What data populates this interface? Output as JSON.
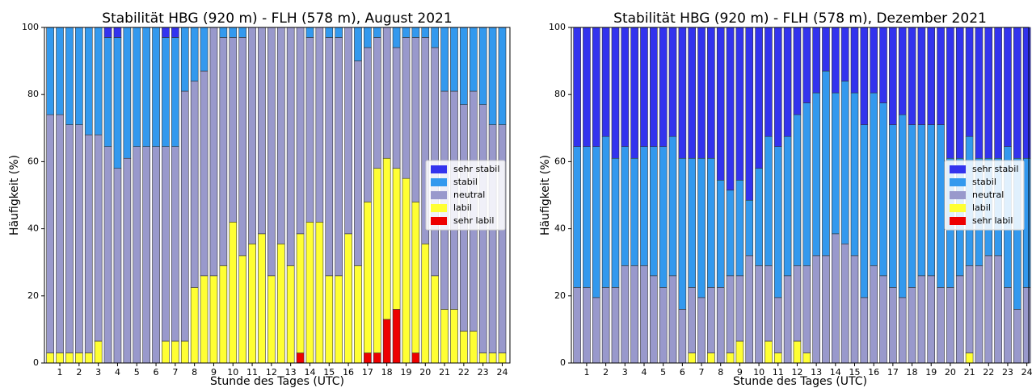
{
  "chart_data": [
    {
      "type": "bar",
      "stacked": true,
      "title": "Stabilität HBG (920 m) - FLH (578 m), August 2021",
      "xlabel": "Stunde des Tages (UTC)",
      "ylabel": "Häufigkeit (%)",
      "legend": "center right",
      "x": [
        0.5,
        1,
        1.5,
        2,
        2.5,
        3,
        3.5,
        4,
        4.5,
        5,
        5.5,
        6,
        6.5,
        7,
        7.5,
        8,
        8.5,
        9,
        9.5,
        10,
        10.5,
        11,
        11.5,
        12,
        12.5,
        13,
        13.5,
        14,
        14.5,
        15,
        15.5,
        16,
        16.5,
        17,
        17.5,
        18,
        18.5,
        19,
        19.5,
        20,
        20.5,
        21,
        21.5,
        22,
        22.5,
        23,
        23.5,
        24
      ],
      "xlim": [
        0.2,
        24.4
      ],
      "ylim": [
        0,
        100
      ],
      "xticks": [
        1,
        2,
        3,
        4,
        5,
        6,
        7,
        8,
        9,
        10,
        11,
        12,
        13,
        14,
        15,
        16,
        17,
        18,
        19,
        20,
        21,
        22,
        23,
        24
      ],
      "yticks": [
        0,
        20,
        40,
        60,
        80,
        100
      ],
      "series": [
        {
          "name": "sehr labil",
          "color": "#ee0000",
          "values": [
            0,
            0,
            0,
            0,
            0,
            0,
            0,
            0,
            0,
            0,
            0,
            0,
            0,
            0,
            0,
            0,
            0,
            0,
            0,
            0,
            0,
            0,
            0,
            0,
            0,
            0,
            3,
            0,
            0,
            0,
            0,
            0,
            0,
            3,
            3,
            13,
            16,
            0,
            3,
            0,
            0,
            0,
            0,
            0,
            0,
            0,
            0,
            0
          ]
        },
        {
          "name": "labil",
          "color": "#ffff33",
          "values": [
            3,
            3,
            3,
            3,
            3,
            6.5,
            0,
            0,
            0,
            0,
            0,
            0,
            6.5,
            6.5,
            6.5,
            22.5,
            26,
            26,
            29,
            42,
            32,
            35.5,
            38.5,
            26,
            35.5,
            29,
            35.5,
            42,
            42,
            26,
            26,
            38.5,
            29,
            45,
            55,
            48,
            42,
            55,
            45,
            35.5,
            26,
            16,
            16,
            9.5,
            9.5,
            3,
            3,
            3
          ]
        },
        {
          "name": "neutral",
          "color": "#9999cc",
          "values": [
            71,
            71,
            68,
            68,
            65,
            61.5,
            64.5,
            58,
            61,
            64.5,
            64.5,
            64.5,
            58,
            58,
            74.5,
            61.5,
            61,
            74,
            68,
            55,
            65,
            64.5,
            61.5,
            74,
            64.5,
            71,
            61.5,
            55,
            58,
            71,
            71,
            61.5,
            61,
            46,
            39,
            39,
            36,
            42,
            49,
            61.5,
            68,
            65,
            65,
            67.5,
            71.5,
            74,
            68,
            68
          ]
        },
        {
          "name": "stabil",
          "color": "#3399ee",
          "values": [
            26,
            26,
            29,
            29,
            32,
            32,
            32.5,
            39,
            39,
            35.5,
            35.5,
            35.5,
            32.5,
            32.5,
            19,
            16,
            13,
            0,
            3,
            3,
            3,
            0,
            0,
            0,
            0,
            0,
            0,
            3,
            0,
            3,
            3,
            0,
            10,
            6,
            3,
            0,
            6,
            3,
            3,
            3,
            6,
            19,
            19,
            23,
            19,
            23,
            29,
            29
          ]
        },
        {
          "name": "sehr stabil",
          "color": "#3333ee",
          "values": [
            0,
            0,
            0,
            0,
            0,
            0,
            3,
            3,
            0,
            0,
            0,
            0,
            3,
            3,
            0,
            0,
            0,
            0,
            0,
            0,
            0,
            0,
            0,
            0,
            0,
            0,
            0,
            0,
            0,
            0,
            0,
            0,
            0,
            0,
            0,
            0,
            0,
            0,
            0,
            0,
            0,
            0,
            0,
            0,
            0,
            0,
            0,
            0
          ]
        }
      ]
    },
    {
      "type": "bar",
      "stacked": true,
      "title": "Stabilität HBG (920 m) - FLH (578 m), Dezember 2021",
      "xlabel": "Stunde des Tages (UTC)",
      "ylabel": "Häufigkeit (%)",
      "legend": "center right",
      "x": [
        0.5,
        1,
        1.5,
        2,
        2.5,
        3,
        3.5,
        4,
        4.5,
        5,
        5.5,
        6,
        6.5,
        7,
        7.5,
        8,
        8.5,
        9,
        9.5,
        10,
        10.5,
        11,
        11.5,
        12,
        12.5,
        13,
        13.5,
        14,
        14.5,
        15,
        15.5,
        16,
        16.5,
        17,
        17.5,
        18,
        18.5,
        19,
        19.5,
        20,
        20.5,
        21,
        21.5,
        22,
        22.5,
        23,
        23.5,
        24
      ],
      "xlim": [
        0.2,
        24.1
      ],
      "ylim": [
        0,
        100
      ],
      "xticks": [
        1,
        2,
        3,
        4,
        5,
        6,
        7,
        8,
        9,
        10,
        11,
        12,
        13,
        14,
        15,
        16,
        17,
        18,
        19,
        20,
        21,
        22,
        23,
        24
      ],
      "yticks": [
        0,
        20,
        40,
        60,
        80,
        100
      ],
      "series": [
        {
          "name": "sehr labil",
          "color": "#ee0000",
          "values": [
            0,
            0,
            0,
            0,
            0,
            0,
            0,
            0,
            0,
            0,
            0,
            0,
            0,
            0,
            0,
            0,
            0,
            0,
            0,
            0,
            0,
            0,
            0,
            0,
            0,
            0,
            0,
            0,
            0,
            0,
            0,
            0,
            0,
            0,
            0,
            0,
            0,
            0,
            0,
            0,
            0,
            0,
            0,
            0,
            0,
            0,
            0,
            0
          ]
        },
        {
          "name": "labil",
          "color": "#ffff33",
          "values": [
            0,
            0,
            0,
            0,
            0,
            0,
            0,
            0,
            0,
            0,
            0,
            0,
            3,
            0,
            3,
            0,
            3,
            6.5,
            0,
            0,
            6.5,
            3,
            0,
            6.5,
            3,
            0,
            0,
            0,
            0,
            0,
            0,
            0,
            0,
            0,
            0,
            0,
            0,
            0,
            0,
            0,
            0,
            3,
            0,
            0,
            0,
            0,
            0,
            0
          ]
        },
        {
          "name": "neutral",
          "color": "#9999cc",
          "values": [
            22.5,
            22.5,
            19.5,
            22.5,
            22.5,
            29,
            29,
            29,
            26,
            22.5,
            26,
            16,
            19.5,
            19.5,
            19.5,
            22.5,
            23,
            19.5,
            32,
            29,
            22.5,
            16.5,
            26,
            22.5,
            26,
            32,
            32,
            38.5,
            35.5,
            32,
            19.5,
            29,
            26,
            22.5,
            19.5,
            22.5,
            26,
            26,
            22.5,
            22.5,
            26,
            26,
            29,
            32,
            32,
            22.5,
            16,
            22.5
          ]
        },
        {
          "name": "stabil",
          "color": "#3399ee",
          "values": [
            42,
            42,
            45,
            45,
            38.5,
            35.5,
            32,
            35.5,
            38.5,
            42,
            41.5,
            45,
            38.5,
            41.5,
            38.5,
            32,
            25.5,
            28.5,
            16.5,
            29,
            38.5,
            45,
            41.5,
            45,
            48.5,
            48.5,
            55,
            42,
            48.5,
            48.5,
            51.5,
            51.5,
            51.5,
            48.5,
            54.5,
            48.5,
            45,
            45,
            48.5,
            38.5,
            35,
            38.5,
            32,
            29,
            29,
            42,
            45,
            38.5
          ]
        },
        {
          "name": "sehr stabil",
          "color": "#3333ee",
          "values": [
            35.5,
            35.5,
            35.5,
            32.5,
            39,
            35.5,
            39,
            35.5,
            35.5,
            35.5,
            32.5,
            39,
            39,
            39,
            39,
            45.5,
            48.5,
            45.5,
            51.5,
            42,
            32.5,
            35.5,
            32.5,
            26,
            22.5,
            19.5,
            13,
            19.5,
            16,
            19.5,
            29,
            19.5,
            22.5,
            29,
            26,
            29,
            29,
            29,
            29,
            39,
            39,
            32.5,
            39,
            39,
            39,
            35.5,
            39,
            39
          ]
        }
      ]
    }
  ]
}
